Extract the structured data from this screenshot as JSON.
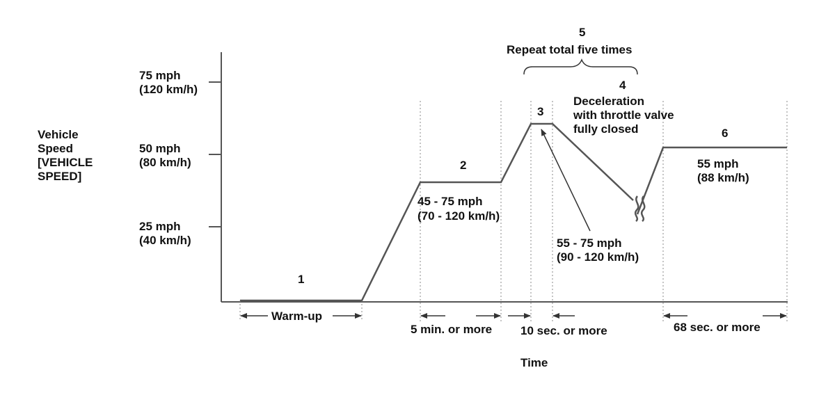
{
  "axes": {
    "y_title": [
      "Vehicle",
      "Speed",
      "[VEHICLE",
      "SPEED]"
    ],
    "x_title": "Time",
    "y_ticks": [
      {
        "mph": "25 mph",
        "kmh": "(40 km/h)"
      },
      {
        "mph": "50 mph",
        "kmh": "(80 km/h)"
      },
      {
        "mph": "75 mph",
        "kmh": "(120 km/h)"
      }
    ]
  },
  "steps": {
    "s1": "1",
    "s2": "2",
    "s3": "3",
    "s4": "4",
    "s5": "5",
    "s6": "6"
  },
  "annotations": {
    "repeat": "Repeat total five times",
    "decel": [
      "Deceleration",
      "with throttle valve",
      "fully closed"
    ],
    "range_45_75": [
      "45 - 75 mph",
      "(70 - 120 km/h)"
    ],
    "range_55_75": [
      "55 - 75 mph",
      "(90 - 120 km/h)"
    ],
    "speed_55": [
      "55 mph",
      "(88 km/h)"
    ]
  },
  "durations": {
    "warmup": "Warm-up",
    "five_min": "5 min. or more",
    "ten_sec": "10 sec. or more",
    "sixty_eight_sec": "68 sec. or more"
  }
}
